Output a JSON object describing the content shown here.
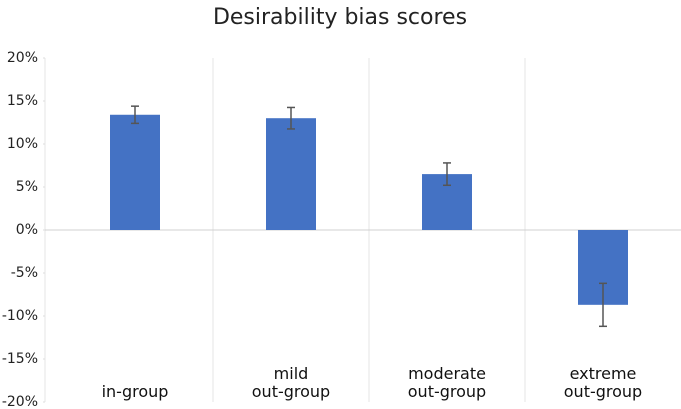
{
  "chart_data": {
    "type": "bar",
    "title": "Desirability bias scores",
    "categories": [
      "in-group",
      "mild\nout-group",
      "moderate\nout-group",
      "extreme\nout-group"
    ],
    "values": [
      13.4,
      13.0,
      6.5,
      -8.7
    ],
    "errors": [
      1.0,
      1.25,
      1.3,
      2.5
    ],
    "color": "#4472c4",
    "ylim": [
      -20,
      20
    ],
    "yticks": [
      {
        "value": -20,
        "label": "-20%"
      },
      {
        "value": -15,
        "label": "-15%"
      },
      {
        "value": -10,
        "label": "-10%"
      },
      {
        "value": -5,
        "label": "-5%"
      },
      {
        "value": 0,
        "label": "0%"
      },
      {
        "value": 5,
        "label": "5%"
      },
      {
        "value": 10,
        "label": "10%"
      },
      {
        "value": 15,
        "label": "15%"
      },
      {
        "value": 20,
        "label": "20%"
      }
    ]
  }
}
